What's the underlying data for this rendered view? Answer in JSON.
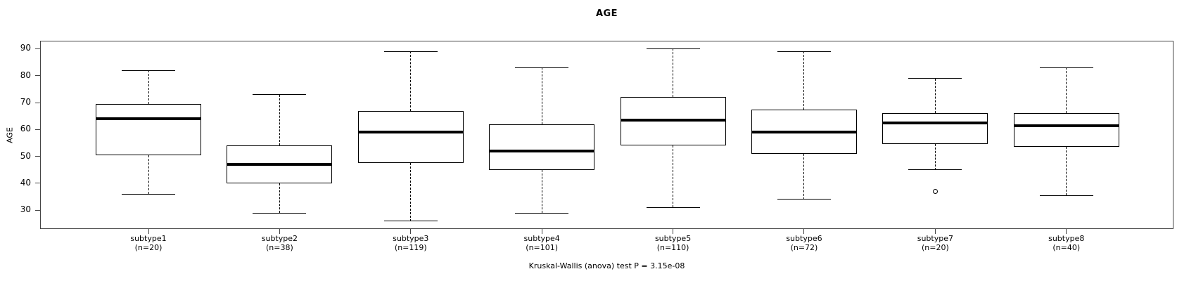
{
  "title": "AGE",
  "chart_data": {
    "type": "boxplot",
    "title": "AGE",
    "ylabel": "AGE",
    "xlabel": "",
    "caption": "Kruskal-Wallis (anova) test P = 3.15e-08",
    "ylim": [
      23,
      93
    ],
    "yticks": [
      30,
      40,
      50,
      60,
      70,
      80,
      90
    ],
    "grid": false,
    "legend": null,
    "colors": {
      "stroke": "#000000",
      "background": "#ffffff"
    },
    "groups": [
      {
        "label": "subtype1",
        "n_label": "(n=20)",
        "n": 20,
        "whisker_low": 36,
        "q1": 50.5,
        "median": 64,
        "q3": 69.5,
        "whisker_high": 82,
        "outliers": []
      },
      {
        "label": "subtype2",
        "n_label": "(n=38)",
        "n": 38,
        "whisker_low": 29,
        "q1": 40,
        "median": 47,
        "q3": 54,
        "whisker_high": 73,
        "outliers": []
      },
      {
        "label": "subtype3",
        "n_label": "(n=119)",
        "n": 119,
        "whisker_low": 26,
        "q1": 47.5,
        "median": 59,
        "q3": 67,
        "whisker_high": 89,
        "outliers": []
      },
      {
        "label": "subtype4",
        "n_label": "(n=101)",
        "n": 101,
        "whisker_low": 29,
        "q1": 45,
        "median": 52,
        "q3": 62,
        "whisker_high": 83,
        "outliers": []
      },
      {
        "label": "subtype5",
        "n_label": "(n=110)",
        "n": 110,
        "whisker_low": 31,
        "q1": 54,
        "median": 63.5,
        "q3": 72,
        "whisker_high": 90,
        "outliers": []
      },
      {
        "label": "subtype6",
        "n_label": "(n=72)",
        "n": 72,
        "whisker_low": 34,
        "q1": 51,
        "median": 59,
        "q3": 67.5,
        "whisker_high": 89,
        "outliers": []
      },
      {
        "label": "subtype7",
        "n_label": "(n=20)",
        "n": 20,
        "whisker_low": 45,
        "q1": 54.5,
        "median": 62.5,
        "q3": 66,
        "whisker_high": 79,
        "outliers": [
          37
        ]
      },
      {
        "label": "subtype8",
        "n_label": "(n=40)",
        "n": 40,
        "whisker_low": 35.5,
        "q1": 53.5,
        "median": 61.5,
        "q3": 66,
        "whisker_high": 83,
        "outliers": []
      }
    ]
  }
}
